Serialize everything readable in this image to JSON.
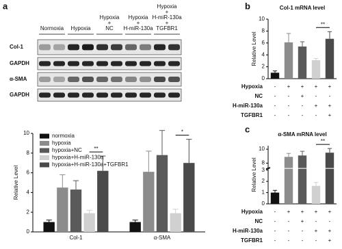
{
  "panels": [
    "a",
    "b",
    "c"
  ],
  "blot": {
    "groups": [
      "Normoxia",
      "Hypoxia",
      "Hypoxia\n+\nNC",
      "Hypoxia\n+\nH-miR-130a",
      "Hypoxia\n+\nH-miR-130a\n+\nTGFBR1"
    ],
    "rows": [
      "Col-1",
      "GAPDH",
      "α-SMA",
      "GAPDH"
    ]
  },
  "chart_data": [
    {
      "type": "bar",
      "y_label": "Relative Level",
      "categories": [
        "Col-1",
        "α-SMA"
      ],
      "series": [
        {
          "name": "normoxia",
          "color": "#111111",
          "values": [
            1.0,
            1.0
          ],
          "errors": [
            0.2,
            0.2
          ]
        },
        {
          "name": "hypoxia",
          "color": "#8c8c8c",
          "values": [
            4.5,
            6.1
          ],
          "errors": [
            1.3,
            2.1
          ]
        },
        {
          "name": "hypoxia+NC",
          "color": "#5a5a5a",
          "values": [
            4.3,
            7.8
          ],
          "errors": [
            0.9,
            2.5
          ]
        },
        {
          "name": "hypoxia+H-miR-130a",
          "color": "#d0d0d0",
          "values": [
            1.9,
            1.9
          ],
          "errors": [
            0.3,
            0.4
          ]
        },
        {
          "name": "hypoxia+H-miR-130a+TGFBR1",
          "color": "#4a4a4a",
          "values": [
            6.2,
            7.0
          ],
          "errors": [
            1.5,
            2.4
          ]
        }
      ],
      "ylim": [
        0,
        10
      ],
      "yticks": [
        0,
        2,
        4,
        6,
        8,
        10
      ],
      "legend": "top-left",
      "significance": [
        {
          "category": 0,
          "between": [
            3,
            4
          ],
          "label": "**"
        },
        {
          "category": 1,
          "between": [
            3,
            4
          ],
          "label": "*"
        }
      ]
    },
    {
      "type": "bar",
      "title": "Col-1 mRNA level",
      "y_label": "Relative Level",
      "categories": [
        null,
        null,
        null,
        null,
        null
      ],
      "values": [
        1.0,
        6.1,
        5.4,
        3.1,
        6.7
      ],
      "errors": [
        0.3,
        1.5,
        0.8,
        0.3,
        1.2
      ],
      "colors": [
        "#111111",
        "#8c8c8c",
        "#5a5a5a",
        "#d0d0d0",
        "#4a4a4a"
      ],
      "ylim": [
        0,
        10
      ],
      "yticks": [
        0,
        2,
        4,
        6,
        8,
        10
      ],
      "significance": [
        {
          "between": [
            3,
            4
          ],
          "label": "**"
        }
      ],
      "conditions": [
        {
          "name": "Hypoxia",
          "marks": [
            "-",
            "+",
            "+",
            "+",
            "+"
          ]
        },
        {
          "name": "NC",
          "marks": [
            "-",
            "-",
            "+",
            "-",
            "-"
          ]
        },
        {
          "name": "H-miR-130a",
          "marks": [
            "-",
            "-",
            "-",
            "+",
            "+"
          ]
        },
        {
          "name": "TGFBR1",
          "marks": [
            "-",
            "-",
            "-",
            "-",
            "+"
          ]
        }
      ]
    },
    {
      "type": "bar",
      "title": "α-SMA mRNA level",
      "y_label": "Relative Level",
      "categories": [
        null,
        null,
        null,
        null,
        null
      ],
      "values": [
        1.0,
        8.9,
        9.1,
        1.6,
        9.5
      ],
      "errors": [
        0.2,
        0.5,
        0.6,
        0.3,
        0.6
      ],
      "colors": [
        "#111111",
        "#8c8c8c",
        "#5a5a5a",
        "#d0d0d0",
        "#4a4a4a"
      ],
      "ylim": [
        0,
        10.5
      ],
      "ybreak": [
        3,
        7.5
      ],
      "yticks": [
        0,
        1,
        2,
        3,
        8,
        10
      ],
      "significance": [
        {
          "between": [
            3,
            4
          ],
          "label": "**"
        }
      ],
      "conditions": [
        {
          "name": "Hypoxia",
          "marks": [
            "-",
            "+",
            "+",
            "+",
            "+"
          ]
        },
        {
          "name": "NC",
          "marks": [
            "-",
            "-",
            "+",
            "-",
            "-"
          ]
        },
        {
          "name": "H-miR-130a",
          "marks": [
            "-",
            "-",
            "-",
            "+",
            "+"
          ]
        },
        {
          "name": "TGFBR1",
          "marks": [
            "-",
            "-",
            "-",
            "-",
            "+"
          ]
        }
      ]
    }
  ]
}
